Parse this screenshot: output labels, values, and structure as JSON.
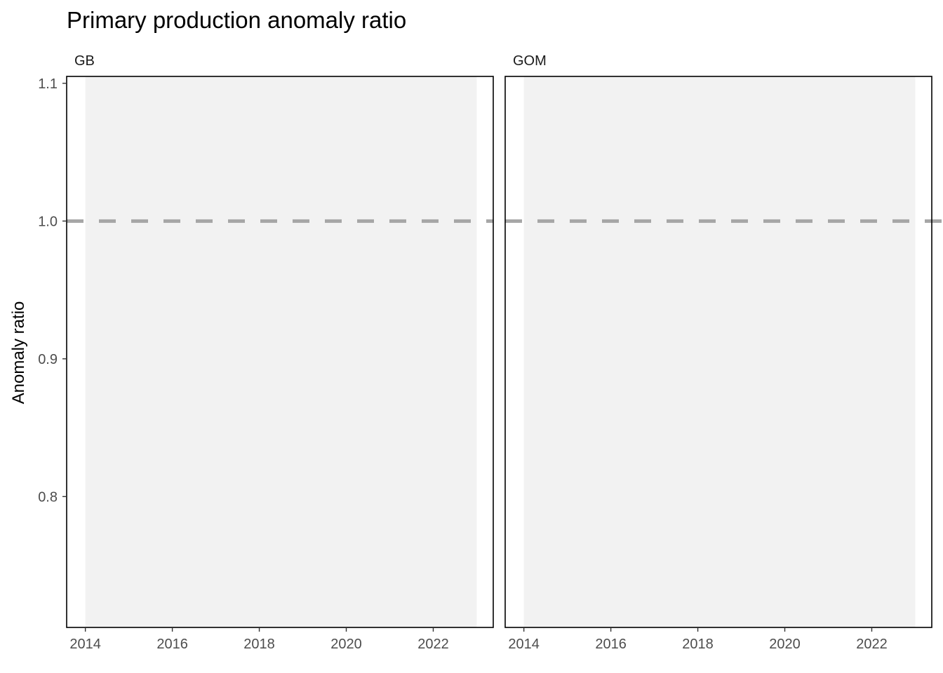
{
  "chart_data": {
    "type": "line",
    "title": "Primary production anomaly ratio",
    "xlabel": "",
    "ylabel": "Anomaly ratio",
    "xlim": [
      2013.57,
      2023.38
    ],
    "ylim": [
      0.705,
      1.105
    ],
    "x_ticks": [
      "2014",
      "2016",
      "2018",
      "2020",
      "2022"
    ],
    "y_ticks": [
      "0.8",
      "0.9",
      "1.0",
      "1.1"
    ],
    "facets": [
      {
        "label": "GB",
        "shaded_range": [
          2014,
          2023
        ],
        "reference_line": 1.0,
        "series": []
      },
      {
        "label": "GOM",
        "shaded_range": [
          2014,
          2023
        ],
        "reference_line": 1.0,
        "series": []
      }
    ],
    "grid": false,
    "colors": {
      "shade": "#f2f2f2",
      "reference": "#a6a6a6",
      "frame": "#000000"
    }
  }
}
